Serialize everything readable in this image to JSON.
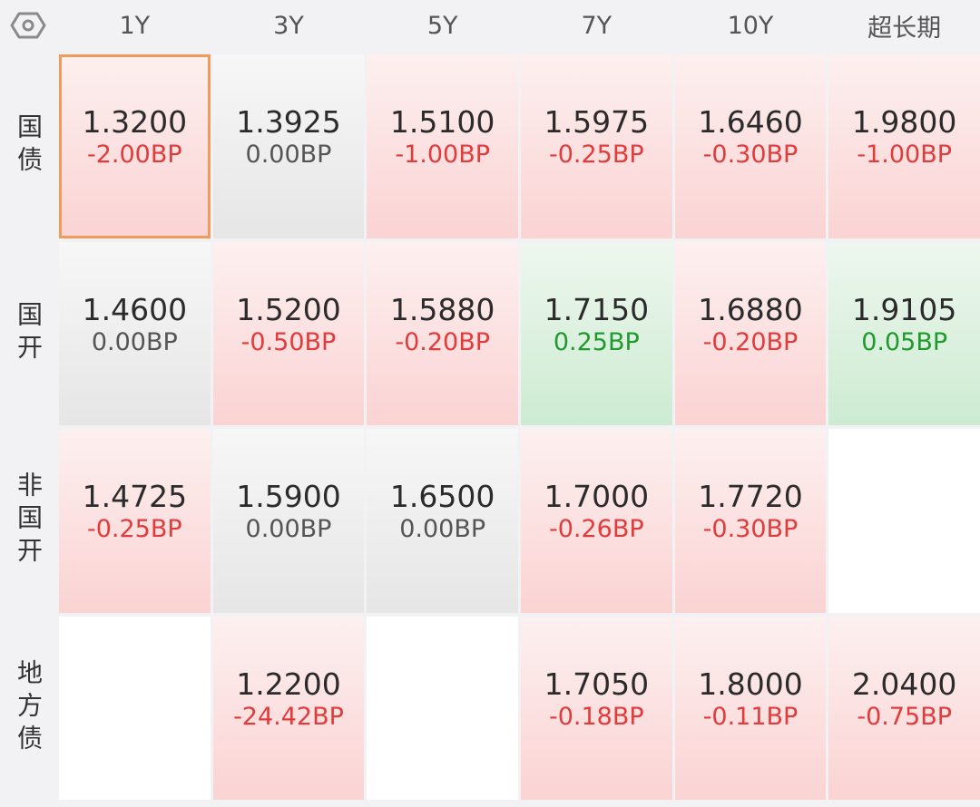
{
  "columns": [
    "1Y",
    "3Y",
    "5Y",
    "7Y",
    "10Y",
    "超长期"
  ],
  "rows": [
    {
      "label": "国债",
      "cells": [
        {
          "rate": "1.3200",
          "change": "-2.00BP",
          "dir": "down",
          "selected": true
        },
        {
          "rate": "1.3925",
          "change": "0.00BP",
          "dir": "flat"
        },
        {
          "rate": "1.5100",
          "change": "-1.00BP",
          "dir": "down"
        },
        {
          "rate": "1.5975",
          "change": "-0.25BP",
          "dir": "down"
        },
        {
          "rate": "1.6460",
          "change": "-0.30BP",
          "dir": "down"
        },
        {
          "rate": "1.9800",
          "change": "-1.00BP",
          "dir": "down"
        }
      ]
    },
    {
      "label": "国开",
      "cells": [
        {
          "rate": "1.4600",
          "change": "0.00BP",
          "dir": "flat"
        },
        {
          "rate": "1.5200",
          "change": "-0.50BP",
          "dir": "down"
        },
        {
          "rate": "1.5880",
          "change": "-0.20BP",
          "dir": "down"
        },
        {
          "rate": "1.7150",
          "change": "0.25BP",
          "dir": "up"
        },
        {
          "rate": "1.6880",
          "change": "-0.20BP",
          "dir": "down"
        },
        {
          "rate": "1.9105",
          "change": "0.05BP",
          "dir": "up"
        }
      ]
    },
    {
      "label": "非国开",
      "cells": [
        {
          "rate": "1.4725",
          "change": "-0.25BP",
          "dir": "down"
        },
        {
          "rate": "1.5900",
          "change": "0.00BP",
          "dir": "flat"
        },
        {
          "rate": "1.6500",
          "change": "0.00BP",
          "dir": "flat"
        },
        {
          "rate": "1.7000",
          "change": "-0.26BP",
          "dir": "down"
        },
        {
          "rate": "1.7720",
          "change": "-0.30BP",
          "dir": "down"
        },
        null
      ]
    },
    {
      "label": "地方债",
      "cells": [
        null,
        {
          "rate": "1.2200",
          "change": "-24.42BP",
          "dir": "down"
        },
        null,
        {
          "rate": "1.7050",
          "change": "-0.18BP",
          "dir": "down"
        },
        {
          "rate": "1.8000",
          "change": "-0.11BP",
          "dir": "down"
        },
        {
          "rate": "2.0400",
          "change": "-0.75BP",
          "dir": "down"
        }
      ]
    }
  ],
  "icons": {
    "corner": "settings-hex-icon"
  },
  "colors": {
    "down": "#e23b3b",
    "up": "#1f9a2c",
    "flat": "#555555",
    "selected_border": "#f09a5c"
  }
}
